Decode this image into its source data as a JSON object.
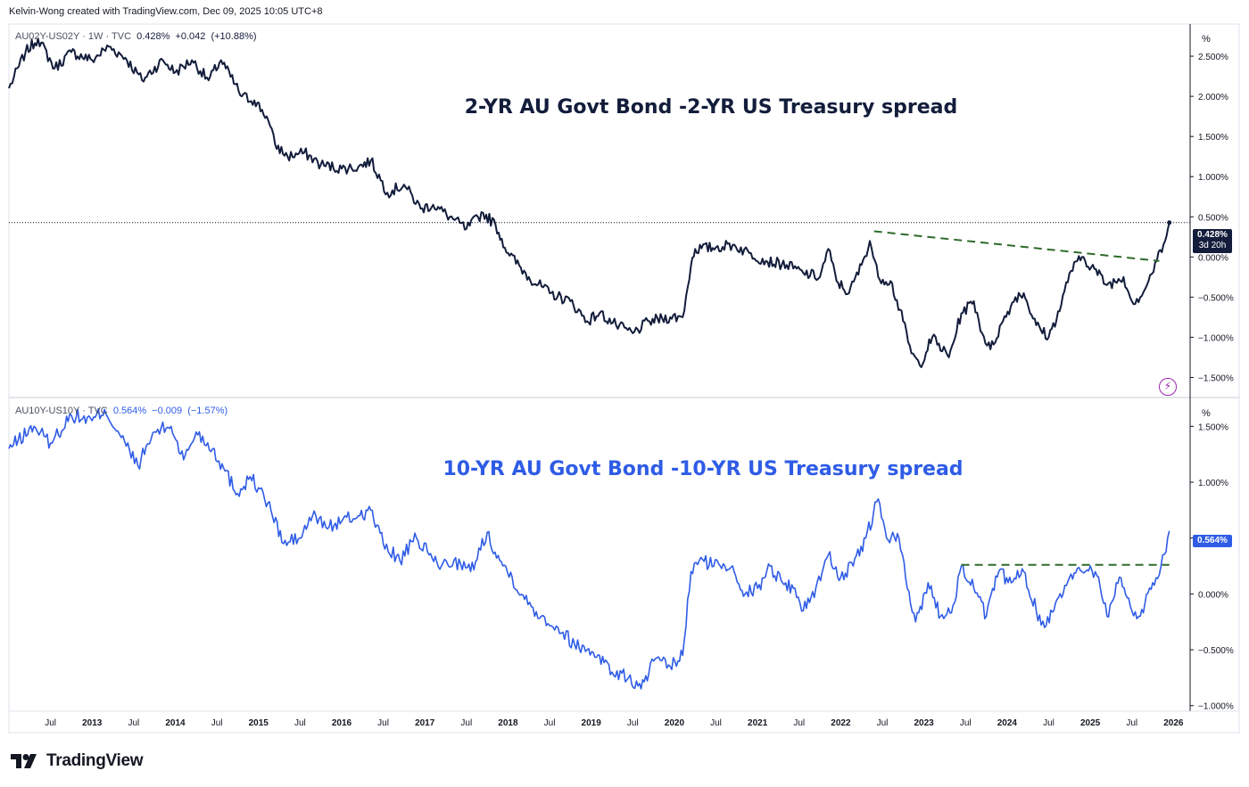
{
  "header": {
    "credit": "Kelvin-Wong created with TradingView.com, Dec 09, 2025 10:05 UTC+8"
  },
  "brand": {
    "logo_text": "TradingView",
    "logo_icon": "tradingview-logo-icon"
  },
  "colors": {
    "series_top": "#131d3b",
    "series_bottom": "#2f5ce6",
    "trendline": "#2e6b2a",
    "grid": "#e0e3eb"
  },
  "x_axis": {
    "labels": [
      {
        "label": "Jul",
        "t": 2012.5
      },
      {
        "label": "2013",
        "t": 2013.0
      },
      {
        "label": "Jul",
        "t": 2013.5
      },
      {
        "label": "2014",
        "t": 2014.0
      },
      {
        "label": "Jul",
        "t": 2014.5
      },
      {
        "label": "2015",
        "t": 2015.0
      },
      {
        "label": "Jul",
        "t": 2015.5
      },
      {
        "label": "2016",
        "t": 2016.0
      },
      {
        "label": "Jul",
        "t": 2016.5
      },
      {
        "label": "2017",
        "t": 2017.0
      },
      {
        "label": "Jul",
        "t": 2017.5
      },
      {
        "label": "2018",
        "t": 2018.0
      },
      {
        "label": "Jul",
        "t": 2018.5
      },
      {
        "label": "2019",
        "t": 2019.0
      },
      {
        "label": "Jul",
        "t": 2019.5
      },
      {
        "label": "2020",
        "t": 2020.0
      },
      {
        "label": "Jul",
        "t": 2020.5
      },
      {
        "label": "2021",
        "t": 2021.0
      },
      {
        "label": "Jul",
        "t": 2021.5
      },
      {
        "label": "2022",
        "t": 2022.0
      },
      {
        "label": "Jul",
        "t": 2022.5
      },
      {
        "label": "2023",
        "t": 2023.0
      },
      {
        "label": "Jul",
        "t": 2023.5
      },
      {
        "label": "2024",
        "t": 2024.0
      },
      {
        "label": "Jul",
        "t": 2024.5
      },
      {
        "label": "2025",
        "t": 2025.0
      },
      {
        "label": "Jul",
        "t": 2025.5
      },
      {
        "label": "2026",
        "t": 2026.0
      }
    ]
  },
  "top_pane": {
    "legend": {
      "symbol": "AU02Y-US02Y · 1W · TVC",
      "last": "0.428%",
      "change": "+0.042",
      "change_pct": "(+10.88%)"
    },
    "annotation": "2-YR AU Govt Bond -2-YR US Treasury spread",
    "unit_label": "%",
    "price_badge": {
      "value": "0.428%",
      "countdown": "3d 20h"
    },
    "current_value": 0.428,
    "y_range": [
      -1.75,
      2.9
    ],
    "ticks": [
      {
        "label": "2.500%",
        "v": 2.5
      },
      {
        "label": "2.000%",
        "v": 2.0
      },
      {
        "label": "1.500%",
        "v": 1.5
      },
      {
        "label": "1.000%",
        "v": 1.0
      },
      {
        "label": "0.500%",
        "v": 0.5
      },
      {
        "label": "0.000%",
        "v": 0.0
      },
      {
        "label": "−0.500%",
        "v": -0.5
      },
      {
        "label": "−1.000%",
        "v": -1.0
      },
      {
        "label": "−1.500%",
        "v": -1.5
      }
    ],
    "trendline": {
      "from": {
        "t": 2022.4,
        "v": 0.32
      },
      "to": {
        "t": 2025.83,
        "v": -0.05
      }
    },
    "anchors": [
      [
        2012.0,
        2.1
      ],
      [
        2012.2,
        2.55
      ],
      [
        2012.35,
        2.72
      ],
      [
        2012.55,
        2.35
      ],
      [
        2012.75,
        2.55
      ],
      [
        2013.0,
        2.45
      ],
      [
        2013.2,
        2.62
      ],
      [
        2013.4,
        2.48
      ],
      [
        2013.6,
        2.2
      ],
      [
        2013.85,
        2.45
      ],
      [
        2014.0,
        2.3
      ],
      [
        2014.2,
        2.45
      ],
      [
        2014.4,
        2.2
      ],
      [
        2014.55,
        2.45
      ],
      [
        2014.8,
        2.0
      ],
      [
        2014.95,
        1.95
      ],
      [
        2015.1,
        1.75
      ],
      [
        2015.2,
        1.4
      ],
      [
        2015.35,
        1.25
      ],
      [
        2015.55,
        1.3
      ],
      [
        2015.75,
        1.15
      ],
      [
        2016.0,
        1.1
      ],
      [
        2016.2,
        1.12
      ],
      [
        2016.35,
        1.2
      ],
      [
        2016.55,
        0.8
      ],
      [
        2016.75,
        0.9
      ],
      [
        2016.95,
        0.6
      ],
      [
        2017.1,
        0.65
      ],
      [
        2017.3,
        0.5
      ],
      [
        2017.5,
        0.35
      ],
      [
        2017.7,
        0.55
      ],
      [
        2017.85,
        0.4
      ],
      [
        2018.0,
        0.05
      ],
      [
        2018.25,
        -0.25
      ],
      [
        2018.5,
        -0.45
      ],
      [
        2018.75,
        -0.55
      ],
      [
        2018.95,
        -0.8
      ],
      [
        2019.1,
        -0.7
      ],
      [
        2019.3,
        -0.85
      ],
      [
        2019.5,
        -0.95
      ],
      [
        2019.7,
        -0.8
      ],
      [
        2019.95,
        -0.75
      ],
      [
        2020.1,
        -0.75
      ],
      [
        2020.2,
        -0.1
      ],
      [
        2020.25,
        0.1
      ],
      [
        2020.5,
        0.12
      ],
      [
        2020.7,
        0.15
      ],
      [
        2020.9,
        0.05
      ],
      [
        2021.1,
        -0.05
      ],
      [
        2021.35,
        -0.1
      ],
      [
        2021.55,
        -0.2
      ],
      [
        2021.75,
        -0.25
      ],
      [
        2021.85,
        0.1
      ],
      [
        2021.95,
        -0.3
      ],
      [
        2022.1,
        -0.45
      ],
      [
        2022.25,
        -0.1
      ],
      [
        2022.35,
        0.2
      ],
      [
        2022.45,
        -0.25
      ],
      [
        2022.6,
        -0.3
      ],
      [
        2022.75,
        -0.8
      ],
      [
        2022.85,
        -1.2
      ],
      [
        2022.95,
        -1.35
      ],
      [
        2023.1,
        -1.0
      ],
      [
        2023.3,
        -1.25
      ],
      [
        2023.45,
        -0.7
      ],
      [
        2023.6,
        -0.55
      ],
      [
        2023.7,
        -0.95
      ],
      [
        2023.8,
        -1.15
      ],
      [
        2023.95,
        -0.8
      ],
      [
        2024.1,
        -0.5
      ],
      [
        2024.2,
        -0.45
      ],
      [
        2024.35,
        -0.85
      ],
      [
        2024.5,
        -1.0
      ],
      [
        2024.65,
        -0.6
      ],
      [
        2024.75,
        -0.2
      ],
      [
        2024.9,
        0.0
      ],
      [
        2025.05,
        -0.15
      ],
      [
        2025.2,
        -0.35
      ],
      [
        2025.4,
        -0.25
      ],
      [
        2025.5,
        -0.55
      ],
      [
        2025.6,
        -0.5
      ],
      [
        2025.7,
        -0.3
      ],
      [
        2025.8,
        -0.05
      ],
      [
        2025.9,
        0.2
      ],
      [
        2025.95,
        0.428
      ]
    ]
  },
  "bottom_pane": {
    "legend": {
      "symbol": "AU10Y-US10Y · TVC",
      "last": "0.564%",
      "change": "−0.009",
      "change_pct": "(−1.57%)"
    },
    "annotation": "10-YR AU Govt Bond -10-YR US Treasury spread",
    "unit_label": "%",
    "price_badge": {
      "value": "0.564%"
    },
    "current_value": 0.564,
    "y_range": [
      -1.05,
      1.75
    ],
    "ticks": [
      {
        "label": "1.500%",
        "v": 1.5
      },
      {
        "label": "1.000%",
        "v": 1.0
      },
      {
        "label": "0.500%",
        "v": 0.5
      },
      {
        "label": "0.000%",
        "v": 0.0
      },
      {
        "label": "−0.500%",
        "v": -0.5
      },
      {
        "label": "−1.000%",
        "v": -1.0
      }
    ],
    "trendline": {
      "from": {
        "t": 2023.45,
        "v": 0.26
      },
      "to": {
        "t": 2025.95,
        "v": 0.26
      }
    },
    "anchors": [
      [
        2012.0,
        1.3
      ],
      [
        2012.3,
        1.5
      ],
      [
        2012.5,
        1.35
      ],
      [
        2012.75,
        1.6
      ],
      [
        2013.0,
        1.55
      ],
      [
        2013.15,
        1.65
      ],
      [
        2013.35,
        1.4
      ],
      [
        2013.55,
        1.15
      ],
      [
        2013.75,
        1.45
      ],
      [
        2013.95,
        1.5
      ],
      [
        2014.1,
        1.2
      ],
      [
        2014.25,
        1.45
      ],
      [
        2014.45,
        1.3
      ],
      [
        2014.6,
        1.1
      ],
      [
        2014.75,
        0.9
      ],
      [
        2014.9,
        1.05
      ],
      [
        2015.0,
        0.95
      ],
      [
        2015.15,
        0.75
      ],
      [
        2015.3,
        0.45
      ],
      [
        2015.5,
        0.5
      ],
      [
        2015.65,
        0.7
      ],
      [
        2015.85,
        0.6
      ],
      [
        2016.0,
        0.65
      ],
      [
        2016.2,
        0.7
      ],
      [
        2016.35,
        0.75
      ],
      [
        2016.5,
        0.45
      ],
      [
        2016.7,
        0.3
      ],
      [
        2016.9,
        0.5
      ],
      [
        2017.05,
        0.35
      ],
      [
        2017.2,
        0.25
      ],
      [
        2017.35,
        0.3
      ],
      [
        2017.55,
        0.2
      ],
      [
        2017.75,
        0.55
      ],
      [
        2017.9,
        0.3
      ],
      [
        2018.05,
        0.15
      ],
      [
        2018.2,
        -0.05
      ],
      [
        2018.4,
        -0.2
      ],
      [
        2018.6,
        -0.3
      ],
      [
        2018.8,
        -0.45
      ],
      [
        2018.95,
        -0.5
      ],
      [
        2019.1,
        -0.55
      ],
      [
        2019.25,
        -0.7
      ],
      [
        2019.45,
        -0.75
      ],
      [
        2019.6,
        -0.85
      ],
      [
        2019.75,
        -0.6
      ],
      [
        2019.95,
        -0.65
      ],
      [
        2020.1,
        -0.55
      ],
      [
        2020.2,
        0.2
      ],
      [
        2020.3,
        0.3
      ],
      [
        2020.55,
        0.25
      ],
      [
        2020.7,
        0.25
      ],
      [
        2020.85,
        0.0
      ],
      [
        2021.0,
        0.05
      ],
      [
        2021.15,
        0.25
      ],
      [
        2021.3,
        0.1
      ],
      [
        2021.45,
        0.05
      ],
      [
        2021.55,
        -0.15
      ],
      [
        2021.7,
        0.05
      ],
      [
        2021.85,
        0.35
      ],
      [
        2022.0,
        0.15
      ],
      [
        2022.15,
        0.25
      ],
      [
        2022.3,
        0.5
      ],
      [
        2022.45,
        0.85
      ],
      [
        2022.55,
        0.5
      ],
      [
        2022.7,
        0.5
      ],
      [
        2022.8,
        0.05
      ],
      [
        2022.9,
        -0.25
      ],
      [
        2023.05,
        0.1
      ],
      [
        2023.2,
        -0.2
      ],
      [
        2023.35,
        -0.1
      ],
      [
        2023.45,
        0.25
      ],
      [
        2023.6,
        0.05
      ],
      [
        2023.75,
        -0.2
      ],
      [
        2023.9,
        0.2
      ],
      [
        2024.05,
        0.1
      ],
      [
        2024.2,
        0.2
      ],
      [
        2024.35,
        -0.15
      ],
      [
        2024.45,
        -0.3
      ],
      [
        2024.6,
        -0.05
      ],
      [
        2024.75,
        0.15
      ],
      [
        2024.9,
        0.2
      ],
      [
        2025.0,
        0.25
      ],
      [
        2025.1,
        0.15
      ],
      [
        2025.2,
        -0.2
      ],
      [
        2025.35,
        0.15
      ],
      [
        2025.5,
        -0.15
      ],
      [
        2025.6,
        -0.2
      ],
      [
        2025.75,
        0.1
      ],
      [
        2025.85,
        0.25
      ],
      [
        2025.95,
        0.564
      ]
    ]
  }
}
